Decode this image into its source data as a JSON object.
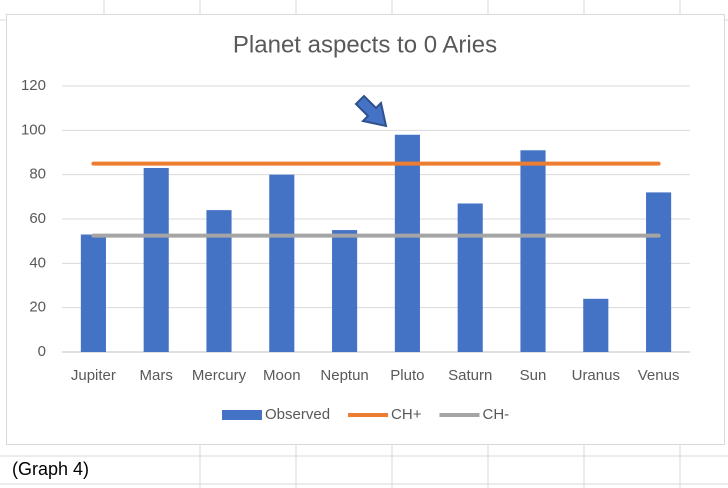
{
  "chart_data": {
    "type": "bar",
    "title": "Planet aspects to 0 Aries",
    "categories": [
      "Jupiter",
      "Mars",
      "Mercury",
      "Moon",
      "Neptun",
      "Pluto",
      "Saturn",
      "Sun",
      "Uranus",
      "Venus"
    ],
    "series": [
      {
        "name": "Observed",
        "type": "bar",
        "color": "#4472c4",
        "values": [
          53,
          83,
          64,
          80,
          55,
          98,
          67,
          91,
          24,
          72
        ]
      },
      {
        "name": "CH+",
        "type": "line",
        "color": "#ed7d31",
        "values": [
          85,
          85,
          85,
          85,
          85,
          85,
          85,
          85,
          85,
          85
        ]
      },
      {
        "name": "CH-",
        "type": "line",
        "color": "#a5a5a5",
        "values": [
          52.5,
          52.5,
          52.5,
          52.5,
          52.5,
          52.5,
          52.5,
          52.5,
          52.5,
          52.5
        ]
      }
    ],
    "ylim": [
      0,
      120
    ],
    "yticks": [
      0,
      20,
      40,
      60,
      80,
      100,
      120
    ],
    "grid": true,
    "legend": "bottom"
  },
  "caption": "(Graph 4)"
}
